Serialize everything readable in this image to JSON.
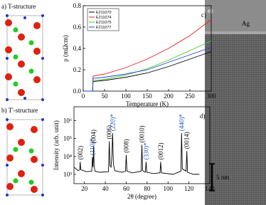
{
  "panels": {
    "a": "a) T-structure",
    "b": "b) T'-structure",
    "e": "e)",
    "ag": "Ag",
    "scale": "5 nm"
  },
  "chart_data": [
    {
      "type": "line",
      "panel_label": "c)",
      "xlabel": "Temperature (K)",
      "ylabel": "ρ (mΩcm)",
      "x": [
        2,
        22,
        23,
        50,
        100,
        150,
        200,
        250,
        300
      ],
      "series": [
        {
          "name": "E211070",
          "color": "#000000",
          "values": [
            0,
            0,
            0.09,
            0.1,
            0.13,
            0.17,
            0.23,
            0.3,
            0.37
          ]
        },
        {
          "name": "E211074",
          "color": "#e8201c",
          "values": [
            0,
            0,
            0.14,
            0.16,
            0.22,
            0.3,
            0.4,
            0.52,
            0.67
          ]
        },
        {
          "name": "E211075",
          "color": "#40d020",
          "values": [
            0,
            0,
            0.1,
            0.11,
            0.15,
            0.21,
            0.29,
            0.38,
            0.47
          ]
        },
        {
          "name": "E211077",
          "color": "#2040e0",
          "values": [
            0,
            0,
            0.12,
            0.13,
            0.16,
            0.2,
            0.27,
            0.34,
            0.41
          ]
        }
      ],
      "xlim": [
        0,
        300
      ],
      "xticks": [
        0,
        50,
        100,
        150,
        200,
        250,
        300
      ],
      "ylim": [
        0,
        0.8
      ],
      "yticks": [
        {
          "value": 0,
          "label": "0.0"
        },
        {
          "value": 0.2,
          "label": "0.2"
        },
        {
          "value": 0.4,
          "label": "0.4"
        },
        {
          "value": 0.6,
          "label": "0.6"
        },
        {
          "value": 0.8,
          "label": "0.8"
        }
      ],
      "legend": "upper left"
    },
    {
      "type": "line",
      "panel_label": "d)",
      "xlabel": "2θ (degree)",
      "ylabel": "Intensity (arb. unit)",
      "log_y": true,
      "x": [
        10,
        14,
        15.5,
        16,
        16.5,
        22,
        27,
        27.7,
        28.2,
        28.8,
        29.3,
        30,
        35,
        43,
        43.8,
        44.5,
        45.5,
        46.3,
        47,
        47.7,
        49,
        56,
        59.3,
        60,
        60.7,
        66,
        74.3,
        75,
        75.7,
        78.3,
        79,
        79.7,
        86,
        92.3,
        93,
        93.7,
        105,
        112.3,
        113,
        113.7,
        117.3,
        118,
        118.7,
        124,
        130
      ],
      "series": [
        {
          "name": "",
          "color": "#000000",
          "values": [
            2500,
            1600,
            1800,
            5000,
            1800,
            1400,
            1500,
            9000,
            2500,
            40000,
            3000,
            1500,
            1300,
            1400,
            70000,
            3000,
            2500,
            12000,
            200000,
            4000,
            1600,
            1300,
            1500,
            12000,
            1500,
            1200,
            1500,
            45000,
            1600,
            1300,
            5000,
            1300,
            1100,
            1200,
            5000,
            1200,
            1000,
            1500,
            200000,
            2000,
            1500,
            20000,
            1300,
            1000,
            1000
          ]
        }
      ],
      "xlim": [
        10,
        140
      ],
      "xticks": [
        20,
        40,
        60,
        80,
        100,
        120,
        140
      ],
      "ylim": [
        300,
        6000000
      ],
      "yticks": [
        {
          "value": 1000,
          "label": "10³"
        },
        {
          "value": 10000,
          "label": "10⁴"
        },
        {
          "value": 100000,
          "label": "10⁵"
        },
        {
          "value": 1000000,
          "label": "10⁶"
        }
      ],
      "annotations": [
        {
          "text": "(002)",
          "x": 16,
          "color": "#000000"
        },
        {
          "text": "(110)*",
          "x": 27.7,
          "color": "#2050c0"
        },
        {
          "text": "(004)",
          "x": 28.8,
          "color": "#000000"
        },
        {
          "text": "(006)",
          "x": 43.8,
          "color": "#000000"
        },
        {
          "text": "(220)*",
          "x": 47,
          "color": "#2050c0"
        },
        {
          "text": "(008)",
          "x": 60,
          "color": "#000000"
        },
        {
          "text": "(0010)",
          "x": 75,
          "color": "#000000"
        },
        {
          "text": "(330)*",
          "x": 79,
          "color": "#2050c0"
        },
        {
          "text": "(0012)",
          "x": 93,
          "color": "#000000"
        },
        {
          "text": "(440)*",
          "x": 113,
          "color": "#2050c0"
        },
        {
          "text": "(0014)",
          "x": 118,
          "color": "#000000"
        }
      ]
    }
  ]
}
